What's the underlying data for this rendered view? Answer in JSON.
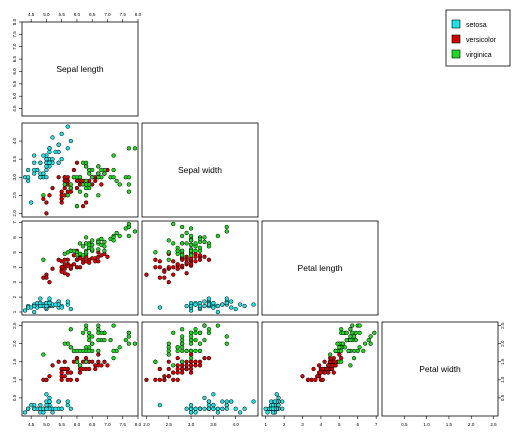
{
  "chart_data": {
    "type": "scatter-matrix",
    "variables": [
      "Sepal length",
      "Sepal width",
      "Petal length",
      "Petal width"
    ],
    "ticks": [
      [
        "4.5",
        "5.0",
        "5.5",
        "6.0",
        "6.5",
        "7.0",
        "7.5",
        "8.0"
      ],
      [
        "2.0",
        "2.5",
        "3.0",
        "3.5",
        "4.0"
      ],
      [
        "1",
        "2",
        "3",
        "4",
        "5",
        "6",
        "7"
      ],
      [
        "0.5",
        "1.0",
        "1.5",
        "2.0",
        "2.5"
      ]
    ],
    "tick_values": [
      [
        4.5,
        5.0,
        5.5,
        6.0,
        6.5,
        7.0,
        7.5,
        8.0
      ],
      [
        2.0,
        2.5,
        3.0,
        3.5,
        4.0
      ],
      [
        1,
        2,
        3,
        4,
        5,
        6,
        7
      ],
      [
        0.5,
        1.0,
        1.5,
        2.0,
        2.5
      ]
    ],
    "ranges": [
      [
        4.2,
        8.0
      ],
      [
        1.9,
        4.5
      ],
      [
        0.8,
        7.1
      ],
      [
        0.0,
        2.6
      ]
    ],
    "legend": {
      "position": "top-right",
      "entries": [
        {
          "label": "setosa",
          "color": "#22e1e6"
        },
        {
          "label": "versicolor",
          "color": "#d40000"
        },
        {
          "label": "virginica",
          "color": "#1fd81f"
        }
      ]
    },
    "series": [
      {
        "name": "setosa",
        "color": "#22e1e6",
        "points": [
          [
            5.1,
            3.5,
            1.4,
            0.2
          ],
          [
            4.9,
            3.0,
            1.4,
            0.2
          ],
          [
            4.7,
            3.2,
            1.3,
            0.2
          ],
          [
            4.6,
            3.1,
            1.5,
            0.2
          ],
          [
            5.0,
            3.6,
            1.4,
            0.2
          ],
          [
            5.4,
            3.9,
            1.7,
            0.4
          ],
          [
            4.6,
            3.4,
            1.4,
            0.3
          ],
          [
            5.0,
            3.4,
            1.5,
            0.2
          ],
          [
            4.4,
            2.9,
            1.4,
            0.2
          ],
          [
            4.9,
            3.1,
            1.5,
            0.1
          ],
          [
            5.4,
            3.7,
            1.5,
            0.2
          ],
          [
            4.8,
            3.4,
            1.6,
            0.2
          ],
          [
            4.8,
            3.0,
            1.4,
            0.1
          ],
          [
            4.3,
            3.0,
            1.1,
            0.1
          ],
          [
            5.8,
            4.0,
            1.2,
            0.2
          ],
          [
            5.7,
            4.4,
            1.5,
            0.4
          ],
          [
            5.4,
            3.9,
            1.3,
            0.4
          ],
          [
            5.1,
            3.5,
            1.4,
            0.3
          ],
          [
            5.7,
            3.8,
            1.7,
            0.3
          ],
          [
            5.1,
            3.8,
            1.5,
            0.3
          ],
          [
            5.4,
            3.4,
            1.7,
            0.2
          ],
          [
            5.1,
            3.7,
            1.5,
            0.4
          ],
          [
            4.6,
            3.6,
            1.0,
            0.2
          ],
          [
            5.1,
            3.3,
            1.7,
            0.5
          ],
          [
            4.8,
            3.4,
            1.9,
            0.2
          ],
          [
            5.0,
            3.0,
            1.6,
            0.2
          ],
          [
            5.0,
            3.4,
            1.6,
            0.4
          ],
          [
            5.2,
            3.5,
            1.5,
            0.2
          ],
          [
            5.2,
            3.4,
            1.4,
            0.2
          ],
          [
            4.7,
            3.2,
            1.6,
            0.2
          ],
          [
            4.8,
            3.1,
            1.6,
            0.2
          ],
          [
            5.4,
            3.4,
            1.5,
            0.4
          ],
          [
            5.2,
            4.1,
            1.5,
            0.1
          ],
          [
            5.5,
            4.2,
            1.4,
            0.2
          ],
          [
            4.9,
            3.1,
            1.5,
            0.2
          ],
          [
            5.0,
            3.2,
            1.2,
            0.2
          ],
          [
            5.5,
            3.5,
            1.3,
            0.2
          ],
          [
            4.9,
            3.6,
            1.4,
            0.1
          ],
          [
            4.4,
            3.0,
            1.3,
            0.2
          ],
          [
            5.1,
            3.4,
            1.5,
            0.2
          ],
          [
            5.0,
            3.5,
            1.3,
            0.3
          ],
          [
            4.5,
            2.3,
            1.3,
            0.3
          ],
          [
            4.4,
            3.2,
            1.3,
            0.2
          ],
          [
            5.0,
            3.5,
            1.6,
            0.6
          ],
          [
            5.1,
            3.8,
            1.9,
            0.4
          ],
          [
            4.8,
            3.0,
            1.4,
            0.3
          ],
          [
            5.1,
            3.8,
            1.6,
            0.2
          ],
          [
            4.6,
            3.2,
            1.4,
            0.2
          ],
          [
            5.3,
            3.7,
            1.5,
            0.2
          ],
          [
            5.0,
            3.3,
            1.4,
            0.2
          ]
        ]
      },
      {
        "name": "versicolor",
        "color": "#d40000",
        "points": [
          [
            7.0,
            3.2,
            4.7,
            1.4
          ],
          [
            6.4,
            3.2,
            4.5,
            1.5
          ],
          [
            6.9,
            3.1,
            4.9,
            1.5
          ],
          [
            5.5,
            2.3,
            4.0,
            1.3
          ],
          [
            6.5,
            2.8,
            4.6,
            1.5
          ],
          [
            5.7,
            2.8,
            4.5,
            1.3
          ],
          [
            6.3,
            3.3,
            4.7,
            1.6
          ],
          [
            4.9,
            2.4,
            3.3,
            1.0
          ],
          [
            6.6,
            2.9,
            4.6,
            1.3
          ],
          [
            5.2,
            2.7,
            3.9,
            1.4
          ],
          [
            5.0,
            2.0,
            3.5,
            1.0
          ],
          [
            5.9,
            3.0,
            4.2,
            1.5
          ],
          [
            6.0,
            2.2,
            4.0,
            1.0
          ],
          [
            6.1,
            2.9,
            4.7,
            1.4
          ],
          [
            5.6,
            2.9,
            3.6,
            1.3
          ],
          [
            6.7,
            3.1,
            4.4,
            1.4
          ],
          [
            5.6,
            3.0,
            4.5,
            1.5
          ],
          [
            5.8,
            2.7,
            4.1,
            1.0
          ],
          [
            6.2,
            2.2,
            4.5,
            1.5
          ],
          [
            5.6,
            2.5,
            3.9,
            1.1
          ],
          [
            5.9,
            3.2,
            4.8,
            1.8
          ],
          [
            6.1,
            2.8,
            4.0,
            1.3
          ],
          [
            6.3,
            2.5,
            4.9,
            1.5
          ],
          [
            6.1,
            2.8,
            4.7,
            1.2
          ],
          [
            6.4,
            2.9,
            4.3,
            1.3
          ],
          [
            6.6,
            3.0,
            4.4,
            1.4
          ],
          [
            6.8,
            2.8,
            4.8,
            1.4
          ],
          [
            6.7,
            3.0,
            5.0,
            1.7
          ],
          [
            6.0,
            2.9,
            4.5,
            1.5
          ],
          [
            5.7,
            2.6,
            3.5,
            1.0
          ],
          [
            5.5,
            2.4,
            3.8,
            1.1
          ],
          [
            5.5,
            2.4,
            3.7,
            1.0
          ],
          [
            5.8,
            2.7,
            3.9,
            1.2
          ],
          [
            6.0,
            2.7,
            5.1,
            1.6
          ],
          [
            5.4,
            3.0,
            4.5,
            1.5
          ],
          [
            6.0,
            3.4,
            4.5,
            1.6
          ],
          [
            6.7,
            3.1,
            4.7,
            1.5
          ],
          [
            6.3,
            2.3,
            4.4,
            1.3
          ],
          [
            5.6,
            3.0,
            4.1,
            1.3
          ],
          [
            5.5,
            2.5,
            4.0,
            1.3
          ],
          [
            5.5,
            2.6,
            4.4,
            1.2
          ],
          [
            6.1,
            3.0,
            4.6,
            1.4
          ],
          [
            5.8,
            2.6,
            4.0,
            1.2
          ],
          [
            5.0,
            2.3,
            3.3,
            1.0
          ],
          [
            5.6,
            2.7,
            4.2,
            1.3
          ],
          [
            5.7,
            3.0,
            4.2,
            1.2
          ],
          [
            5.7,
            2.9,
            4.2,
            1.3
          ],
          [
            6.2,
            2.9,
            4.3,
            1.3
          ],
          [
            5.1,
            2.5,
            3.0,
            1.1
          ],
          [
            5.7,
            2.8,
            4.1,
            1.3
          ]
        ]
      },
      {
        "name": "virginica",
        "color": "#1fd81f",
        "points": [
          [
            6.3,
            3.3,
            6.0,
            2.5
          ],
          [
            5.8,
            2.7,
            5.1,
            1.9
          ],
          [
            7.1,
            3.0,
            5.9,
            2.1
          ],
          [
            6.3,
            2.9,
            5.6,
            1.8
          ],
          [
            6.5,
            3.0,
            5.8,
            2.2
          ],
          [
            7.6,
            3.0,
            6.6,
            2.1
          ],
          [
            4.9,
            2.5,
            4.5,
            1.7
          ],
          [
            7.3,
            2.9,
            6.3,
            1.8
          ],
          [
            6.7,
            2.5,
            5.8,
            1.8
          ],
          [
            7.2,
            3.6,
            6.1,
            2.5
          ],
          [
            6.5,
            3.2,
            5.1,
            2.0
          ],
          [
            6.4,
            2.7,
            5.3,
            1.9
          ],
          [
            6.8,
            3.0,
            5.5,
            2.1
          ],
          [
            5.7,
            2.5,
            5.0,
            2.0
          ],
          [
            5.8,
            2.8,
            5.1,
            2.4
          ],
          [
            6.4,
            3.2,
            5.3,
            2.3
          ],
          [
            6.5,
            3.0,
            5.5,
            1.8
          ],
          [
            7.7,
            3.8,
            6.7,
            2.2
          ],
          [
            7.7,
            2.6,
            6.9,
            2.3
          ],
          [
            6.0,
            2.2,
            5.0,
            1.5
          ],
          [
            6.9,
            3.2,
            5.7,
            2.3
          ],
          [
            5.6,
            2.8,
            4.9,
            2.0
          ],
          [
            7.7,
            2.8,
            6.7,
            2.0
          ],
          [
            6.3,
            2.7,
            4.9,
            1.8
          ],
          [
            6.7,
            3.3,
            5.7,
            2.1
          ],
          [
            7.2,
            3.2,
            6.0,
            1.8
          ],
          [
            6.2,
            2.8,
            4.8,
            1.8
          ],
          [
            6.1,
            3.0,
            4.9,
            1.8
          ],
          [
            6.4,
            2.8,
            5.6,
            2.1
          ],
          [
            7.2,
            3.0,
            5.8,
            1.6
          ],
          [
            7.4,
            2.8,
            6.1,
            1.9
          ],
          [
            7.9,
            3.8,
            6.4,
            2.0
          ],
          [
            6.4,
            2.8,
            5.6,
            2.2
          ],
          [
            6.3,
            2.8,
            5.1,
            1.5
          ],
          [
            6.1,
            2.6,
            5.6,
            1.4
          ],
          [
            7.7,
            3.0,
            6.1,
            2.3
          ],
          [
            6.3,
            3.4,
            5.6,
            2.4
          ],
          [
            6.4,
            3.1,
            5.5,
            1.8
          ],
          [
            6.0,
            3.0,
            4.8,
            1.8
          ],
          [
            6.9,
            3.1,
            5.4,
            2.1
          ],
          [
            6.7,
            3.1,
            5.6,
            2.4
          ],
          [
            6.9,
            3.1,
            5.1,
            2.3
          ],
          [
            5.8,
            2.7,
            5.1,
            1.9
          ],
          [
            6.8,
            3.2,
            5.9,
            2.3
          ],
          [
            6.7,
            3.3,
            5.7,
            2.5
          ],
          [
            6.7,
            3.0,
            5.2,
            2.3
          ],
          [
            6.3,
            2.5,
            5.0,
            1.9
          ],
          [
            6.5,
            3.0,
            5.2,
            2.0
          ],
          [
            6.2,
            3.4,
            5.4,
            2.3
          ],
          [
            5.9,
            3.0,
            5.1,
            1.8
          ]
        ]
      }
    ]
  }
}
